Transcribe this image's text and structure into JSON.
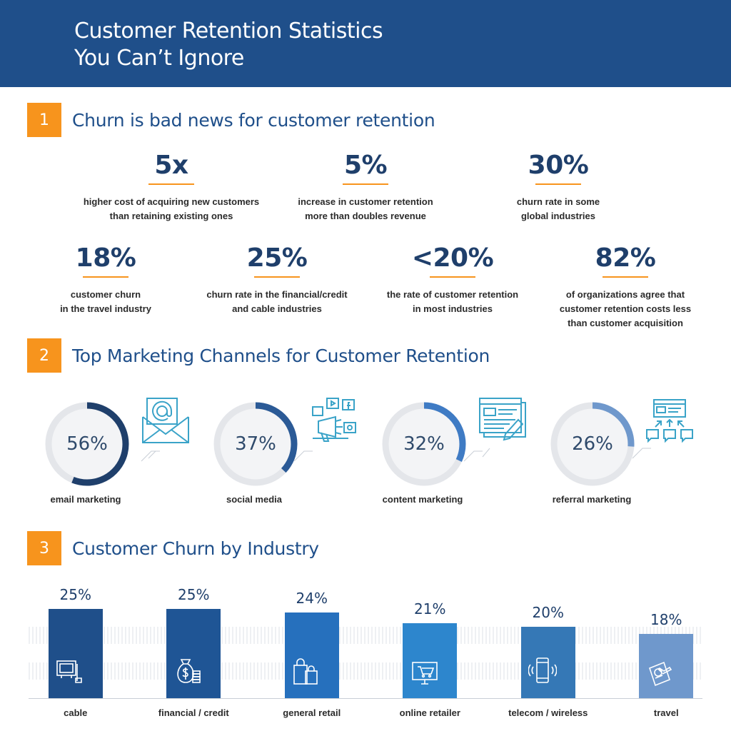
{
  "header": {
    "title_line1": "Customer Retention Statistics",
    "title_line2": "You Can’t Ignore"
  },
  "sections": [
    {
      "number": "1",
      "title": "Churn is bad news for customer retention"
    },
    {
      "number": "2",
      "title": "Top Marketing Channels for Customer Retention"
    },
    {
      "number": "3",
      "title": "Customer Churn by Industry"
    }
  ],
  "stats": [
    {
      "value": "5x",
      "desc": "higher cost of acquiring new customers\nthan retaining existing ones"
    },
    {
      "value": "5%",
      "desc": "increase in customer retention\nmore than doubles revenue"
    },
    {
      "value": "30%",
      "desc": "churn rate in some\nglobal industries"
    },
    {
      "value": "18%",
      "desc": "customer churn\nin the travel industry"
    },
    {
      "value": "25%",
      "desc": "churn rate in the financial/credit\nand cable industries"
    },
    {
      "value": "<20%",
      "desc": "the rate of customer retention\nin most industries"
    },
    {
      "value": "82%",
      "desc": "of organizations agree that\ncustomer retention costs less\nthan customer acquisition"
    }
  ],
  "channels": [
    {
      "label": "email marketing",
      "pct_text": "56%",
      "value": 56,
      "color": "#1f3f6b",
      "icon": "envelope-icon"
    },
    {
      "label": "social media",
      "pct_text": "37%",
      "value": 37,
      "color": "#2b5a96",
      "icon": "social-media-icon"
    },
    {
      "label": "content marketing",
      "pct_text": "32%",
      "value": 32,
      "color": "#3f7bc4",
      "icon": "content-icon"
    },
    {
      "label": "referral marketing",
      "pct_text": "26%",
      "value": 26,
      "color": "#6f98cc",
      "icon": "referral-icon"
    }
  ],
  "chart_data": [
    {
      "type": "pie",
      "categories": [
        "email marketing",
        "social media",
        "content marketing",
        "referral marketing"
      ],
      "values": [
        56,
        37,
        32,
        26
      ],
      "title": "Top Marketing Channels for Customer Retention"
    },
    {
      "type": "bar",
      "title": "Customer Churn by Industry",
      "categories": [
        "cable",
        "financial / credit",
        "general retail",
        "online retailer",
        "telecom / wireless",
        "travel"
      ],
      "values": [
        25,
        25,
        24,
        21,
        20,
        18
      ],
      "value_labels": [
        "25%",
        "25%",
        "24%",
        "21%",
        "20%",
        "18%"
      ],
      "colors": [
        "#1f4f8a",
        "#1f5595",
        "#2670bd",
        "#2d86cd",
        "#3578b6",
        "#6f98cc"
      ],
      "icons": [
        "tv-icon",
        "money-bag-icon",
        "shopping-bags-icon",
        "online-cart-icon",
        "smartphone-icon",
        "passport-icon"
      ],
      "ylim": [
        0,
        25
      ],
      "grid": false
    }
  ]
}
